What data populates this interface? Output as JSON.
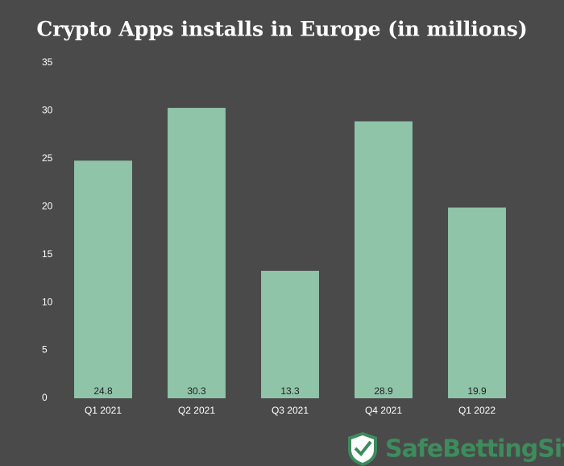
{
  "chart_data": {
    "type": "bar",
    "title": "Crypto Apps installs in Europe (in millions)",
    "categories": [
      "Q1 2021",
      "Q2 2021",
      "Q3 2021",
      "Q4 2021",
      "Q1 2022"
    ],
    "values": [
      24.8,
      30.3,
      13.3,
      28.9,
      19.9
    ],
    "color": "#8fc4a9",
    "ylim": [
      0,
      35
    ],
    "yticks": [
      0,
      5,
      10,
      15,
      20,
      25,
      30,
      35
    ],
    "grid": false,
    "watermark": "SafeBettingSites"
  }
}
